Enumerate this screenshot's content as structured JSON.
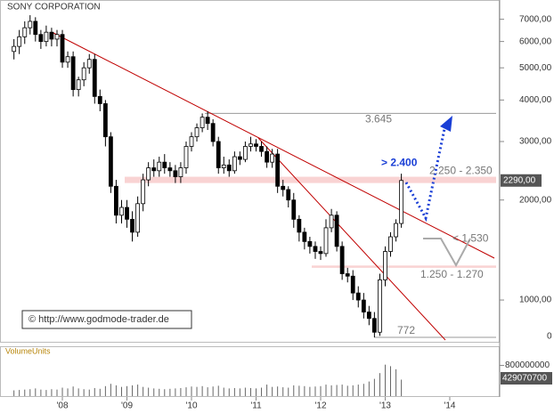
{
  "chart_data": {
    "type": "candlestick",
    "title": "SONY CORPORATION",
    "scale": "log",
    "xlim": [
      2007.034,
      2014.759
    ],
    "xticks": [
      {
        "value": 2008,
        "label": "'08"
      },
      {
        "value": 2009,
        "label": "'09"
      },
      {
        "value": 2010,
        "label": "'10"
      },
      {
        "value": 2011,
        "label": "'11"
      },
      {
        "value": 2012,
        "label": "'12"
      },
      {
        "value": 2013,
        "label": "'13"
      },
      {
        "value": 2014,
        "label": "'14"
      }
    ],
    "ylim": [
      744,
      8000
    ],
    "yticks": [
      {
        "value": 1000,
        "label": "1000,00"
      },
      {
        "value": 2000,
        "label": "2000,00"
      },
      {
        "value": 3000,
        "label": "3000,00"
      },
      {
        "value": 4000,
        "label": "4000,00"
      },
      {
        "value": 5000,
        "label": "5000,00"
      },
      {
        "value": 6000,
        "label": "6000,00"
      },
      {
        "value": 7000,
        "label": "7000,00"
      }
    ],
    "yaxis_floor_label": "0",
    "up_color": "#ffffff",
    "down_color": "#000000",
    "x": [
      2007.25,
      2007.333,
      2007.417,
      2007.5,
      2007.583,
      2007.667,
      2007.75,
      2007.833,
      2007.917,
      2008,
      2008.083,
      2008.167,
      2008.25,
      2008.333,
      2008.417,
      2008.5,
      2008.583,
      2008.667,
      2008.75,
      2008.833,
      2008.917,
      2009,
      2009.083,
      2009.167,
      2009.25,
      2009.333,
      2009.417,
      2009.5,
      2009.583,
      2009.667,
      2009.75,
      2009.833,
      2009.917,
      2010,
      2010.083,
      2010.167,
      2010.25,
      2010.333,
      2010.417,
      2010.5,
      2010.583,
      2010.667,
      2010.75,
      2010.833,
      2010.917,
      2011,
      2011.083,
      2011.167,
      2011.25,
      2011.333,
      2011.417,
      2011.5,
      2011.583,
      2011.667,
      2011.75,
      2011.833,
      2011.917,
      2012,
      2012.083,
      2012.167,
      2012.25,
      2012.333,
      2012.417,
      2012.5,
      2012.583,
      2012.667,
      2012.75,
      2012.833,
      2012.917,
      2013,
      2013.083,
      2013.167,
      2013.25
    ],
    "open": [
      5600,
      5800,
      6200,
      6600,
      6900,
      6300,
      6000,
      6400,
      6100,
      6300,
      5200,
      5400,
      4300,
      4600,
      5000,
      5300,
      4100,
      3900,
      3100,
      2200,
      1800,
      1900,
      1750,
      1600,
      1950,
      2300,
      2500,
      2450,
      2600,
      2500,
      2450,
      2350,
      2500,
      2900,
      3100,
      3300,
      3550,
      3400,
      3000,
      2500,
      2550,
      2450,
      2700,
      2650,
      2900,
      2950,
      2900,
      2800,
      2600,
      2750,
      2200,
      2150,
      2000,
      1750,
      1600,
      1500,
      1450,
      1400,
      1380,
      1650,
      1800,
      1450,
      1200,
      1180,
      1050,
      1000,
      920,
      880,
      800,
      1150,
      1400,
      1550,
      1700
    ],
    "high": [
      6100,
      6500,
      6900,
      7200,
      7100,
      6500,
      6700,
      6600,
      6500,
      6500,
      5600,
      5600,
      4700,
      5200,
      5500,
      5500,
      4300,
      4000,
      3200,
      2300,
      2000,
      2000,
      1850,
      2050,
      2400,
      2600,
      2650,
      2700,
      2750,
      2600,
      2550,
      2600,
      3000,
      3200,
      3400,
      3645,
      3700,
      3500,
      3100,
      2700,
      2650,
      2800,
      2800,
      3000,
      3100,
      3050,
      3000,
      2900,
      2850,
      2850,
      2300,
      2200,
      2100,
      1800,
      1650,
      1550,
      1500,
      1450,
      1750,
      1880,
      1850,
      1500,
      1250,
      1230,
      1100,
      1050,
      960,
      920,
      1200,
      1450,
      1600,
      1750,
      2400
    ],
    "low": [
      5300,
      5500,
      5900,
      6300,
      6000,
      5700,
      5800,
      5800,
      5800,
      5000,
      5000,
      4100,
      4100,
      4400,
      4800,
      3900,
      3700,
      2900,
      2100,
      1700,
      1700,
      1650,
      1500,
      1550,
      1850,
      2200,
      2350,
      2350,
      2400,
      2350,
      2250,
      2250,
      2400,
      2800,
      3000,
      3200,
      3250,
      2900,
      2400,
      2400,
      2350,
      2400,
      2550,
      2600,
      2800,
      2800,
      2700,
      2500,
      2500,
      2100,
      2050,
      1900,
      1650,
      1500,
      1420,
      1380,
      1330,
      1320,
      1350,
      1600,
      1400,
      1150,
      1130,
      1000,
      950,
      880,
      840,
      772,
      780,
      1100,
      1350,
      1500,
      1650
    ],
    "close": [
      5800,
      6200,
      6600,
      6900,
      6300,
      6000,
      6400,
      6100,
      6300,
      5200,
      5400,
      4300,
      4600,
      5000,
      5300,
      4100,
      3900,
      3100,
      2200,
      1800,
      1900,
      1750,
      1600,
      1950,
      2300,
      2500,
      2450,
      2600,
      2500,
      2450,
      2350,
      2500,
      2900,
      3100,
      3300,
      3550,
      3400,
      3000,
      2500,
      2550,
      2450,
      2700,
      2650,
      2900,
      2950,
      2900,
      2800,
      2600,
      2750,
      2200,
      2150,
      2000,
      1750,
      1600,
      1500,
      1450,
      1400,
      1380,
      1650,
      1800,
      1450,
      1200,
      1180,
      1050,
      1000,
      920,
      880,
      800,
      1150,
      1400,
      1550,
      1700,
      2290
    ],
    "price_marker": {
      "value": 2290,
      "label": "2290,00"
    },
    "levels": [
      {
        "text": "3.645",
        "value": 3645
      },
      {
        "text": "772",
        "value": 772
      }
    ],
    "zones": [
      {
        "text": "2.250 - 2.350",
        "low": 2250,
        "high": 2350
      },
      {
        "text": "1.250 - 1.270",
        "low": 1250,
        "high": 1270
      }
    ],
    "targets": [
      {
        "text": "> 2.400",
        "value": 2400
      },
      {
        "text": "< 1.530",
        "value": 1530
      }
    ],
    "copyright": "© http://www.godmode-trader.de",
    "volume": {
      "label": "VolumeUnits",
      "ylim": [
        0,
        1300000000
      ],
      "yticks": [
        800000000
      ],
      "values": [
        150000000,
        160000000,
        170000000,
        180000000,
        200000000,
        170000000,
        160000000,
        180000000,
        170000000,
        220000000,
        200000000,
        250000000,
        200000000,
        180000000,
        170000000,
        210000000,
        190000000,
        260000000,
        320000000,
        280000000,
        240000000,
        260000000,
        280000000,
        300000000,
        240000000,
        220000000,
        200000000,
        190000000,
        180000000,
        190000000,
        200000000,
        210000000,
        230000000,
        250000000,
        240000000,
        260000000,
        230000000,
        250000000,
        270000000,
        220000000,
        200000000,
        210000000,
        200000000,
        220000000,
        210000000,
        200000000,
        220000000,
        300000000,
        240000000,
        250000000,
        230000000,
        220000000,
        280000000,
        270000000,
        260000000,
        240000000,
        250000000,
        260000000,
        300000000,
        280000000,
        290000000,
        300000000,
        270000000,
        280000000,
        300000000,
        320000000,
        380000000,
        450000000,
        600000000,
        820000000,
        780000000,
        700000000,
        429070700
      ]
    }
  }
}
